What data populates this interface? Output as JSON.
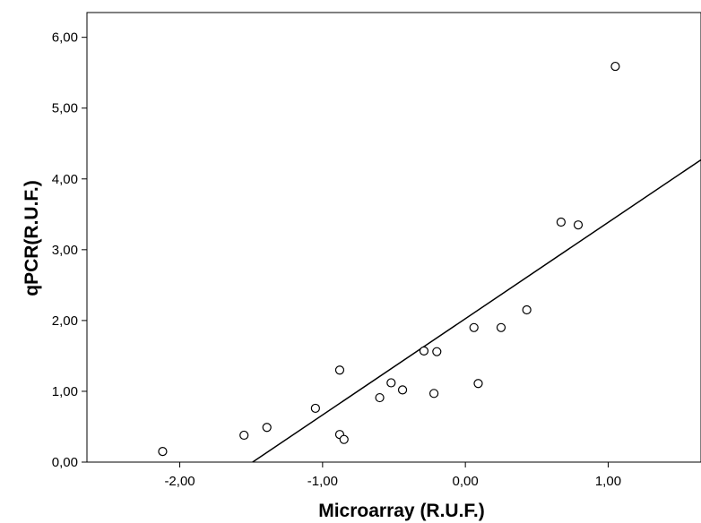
{
  "chart_data": {
    "type": "scatter",
    "xlabel": "Microarray (R.U.F.)",
    "ylabel": "qPCR(R.U.F.)",
    "xlim": [
      -2.65,
      1.65
    ],
    "ylim": [
      0,
      6.35
    ],
    "xticks": [
      -2,
      -1,
      0,
      1
    ],
    "xtick_labels": [
      "-2,00",
      "-1,00",
      "0,00",
      "1,00"
    ],
    "yticks": [
      0,
      1,
      2,
      3,
      4,
      5,
      6
    ],
    "ytick_labels": [
      "0,00",
      "1,00",
      "2,00",
      "3,00",
      "4,00",
      "5,00",
      "6,00"
    ],
    "grid": false,
    "points": [
      {
        "x": -2.12,
        "y": 0.15
      },
      {
        "x": -1.55,
        "y": 0.38
      },
      {
        "x": -1.39,
        "y": 0.49
      },
      {
        "x": -1.05,
        "y": 0.76
      },
      {
        "x": -0.88,
        "y": 1.3
      },
      {
        "x": -0.88,
        "y": 0.39
      },
      {
        "x": -0.85,
        "y": 0.32
      },
      {
        "x": -0.6,
        "y": 0.91
      },
      {
        "x": -0.52,
        "y": 1.12
      },
      {
        "x": -0.44,
        "y": 1.02
      },
      {
        "x": -0.29,
        "y": 1.57
      },
      {
        "x": -0.22,
        "y": 0.97
      },
      {
        "x": -0.2,
        "y": 1.56
      },
      {
        "x": 0.06,
        "y": 1.9
      },
      {
        "x": 0.09,
        "y": 1.11
      },
      {
        "x": 0.25,
        "y": 1.9
      },
      {
        "x": 0.43,
        "y": 2.15
      },
      {
        "x": 0.67,
        "y": 3.39
      },
      {
        "x": 0.79,
        "y": 3.35
      },
      {
        "x": 1.05,
        "y": 5.59
      }
    ],
    "fit_line": {
      "x": [
        -1.49,
        1.65
      ],
      "y": [
        0,
        4.27
      ]
    }
  }
}
